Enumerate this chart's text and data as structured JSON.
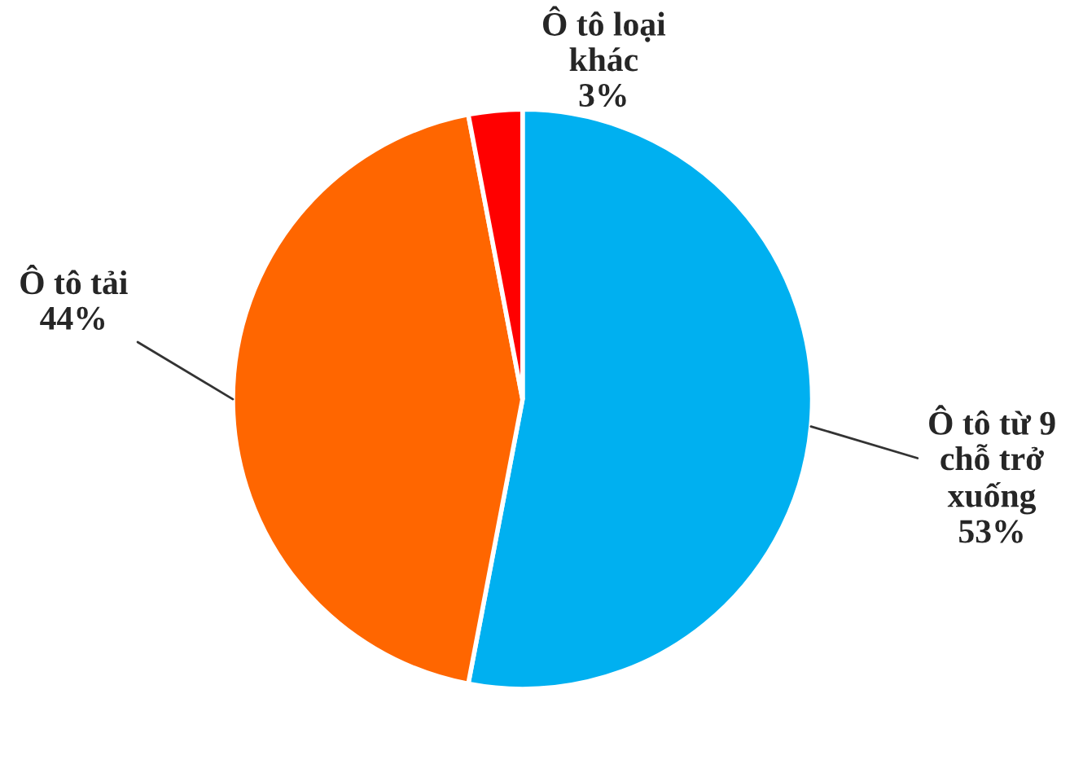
{
  "chart_data": {
    "type": "pie",
    "categories": [
      "Ô tô từ 9\nchỗ trở\nxuống",
      "Ô tô tải",
      "Ô tô loại\nkhác"
    ],
    "values": [
      53,
      44,
      3
    ],
    "value_labels": [
      "53%",
      "44%",
      "3%"
    ],
    "colors": [
      "#00b0f0",
      "#ff6600",
      "#ff0000"
    ],
    "legend": false
  }
}
